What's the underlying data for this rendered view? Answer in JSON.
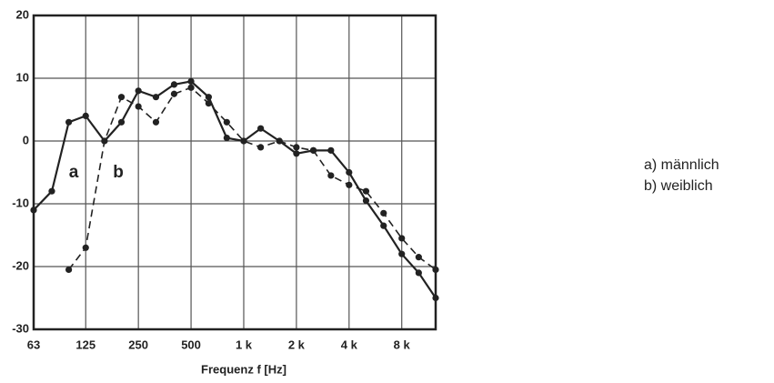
{
  "chart_data": {
    "type": "line",
    "x_label": "Frequenz f [Hz]",
    "xscale": "log",
    "x": [
      63,
      80,
      100,
      125,
      160,
      200,
      250,
      315,
      400,
      500,
      630,
      800,
      1000,
      1250,
      1600,
      2000,
      2500,
      3150,
      4000,
      5000,
      6300,
      8000,
      10000,
      12500
    ],
    "series": [
      {
        "name": "a) männlich",
        "color": "#222222",
        "dash": false,
        "values": [
          -11,
          -8,
          3,
          4,
          0,
          3,
          8,
          7,
          9,
          9.5,
          7,
          0.5,
          0,
          2,
          0,
          -2,
          -1.5,
          -1.5,
          -5,
          -9.5,
          -13.5,
          -18,
          -21,
          -25
        ]
      },
      {
        "name": "b) weiblich",
        "color": "#222222",
        "dash": true,
        "values": [
          null,
          null,
          -20.5,
          -17,
          0,
          7,
          5.5,
          3,
          7.5,
          8.5,
          6,
          3,
          0,
          -1,
          0,
          -1,
          -1.5,
          -5.5,
          -7,
          -8,
          -11.5,
          -15.5,
          -18.5,
          -20.5
        ]
      }
    ],
    "annotations": [
      "a",
      "b"
    ],
    "xlim": [
      63,
      12500
    ],
    "xticks": [
      63,
      125,
      250,
      500,
      {
        "value": 1000,
        "label": "1 k"
      },
      {
        "value": 2000,
        "label": "2 k"
      },
      {
        "value": 4000,
        "label": "4 k"
      },
      {
        "value": 8000,
        "label": "8 k"
      }
    ],
    "ylim": [
      -30,
      20
    ],
    "yticks": [
      -30,
      -20,
      -10,
      0,
      10,
      20
    ],
    "grid": true
  }
}
